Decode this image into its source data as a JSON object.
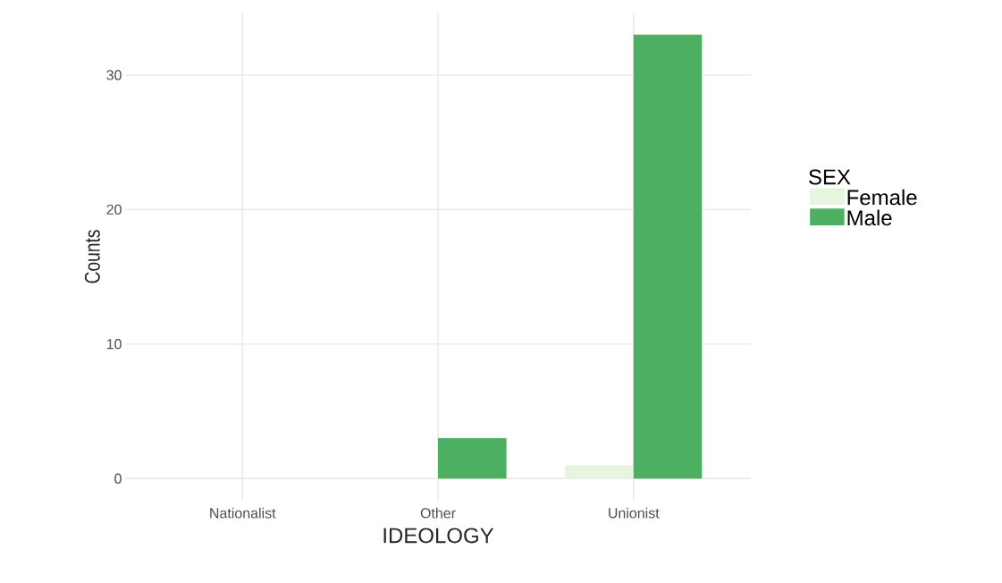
{
  "chart_data": {
    "type": "bar",
    "xlabel": "IDEOLOGY",
    "ylabel": "Counts",
    "legend_title": "SEX",
    "categories": [
      "Nationalist",
      "Other",
      "Unionist"
    ],
    "series": [
      {
        "name": "Female",
        "color": "#e5f5e0",
        "values": [
          0,
          0,
          1
        ]
      },
      {
        "name": "Male",
        "color": "#4daf62",
        "values": [
          0,
          3,
          33
        ]
      }
    ],
    "ylim": [
      -1.65,
      34.65
    ],
    "yticks": [
      0,
      10,
      20,
      30
    ],
    "grid": true,
    "legend": "right"
  }
}
